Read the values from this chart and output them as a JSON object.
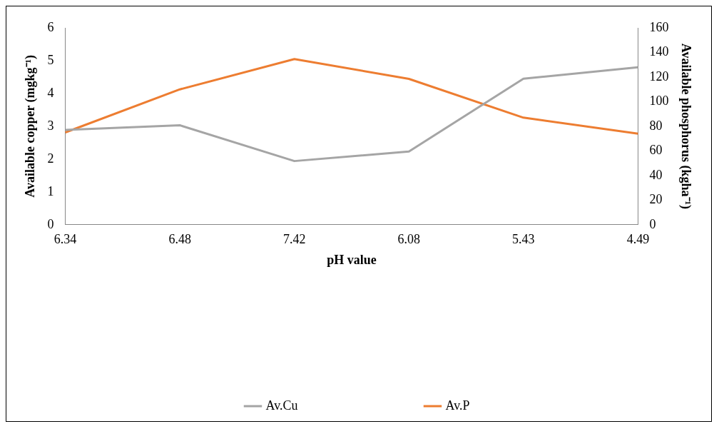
{
  "chart_data": {
    "type": "line",
    "xlabel": "pH value",
    "ylabel": "Available copper (mgkg⁻¹)",
    "y2label": "Available phosphorus (kgha⁻¹)",
    "categories": [
      "6.34",
      "6.48",
      "7.42",
      "6.08",
      "5.43",
      "4.49"
    ],
    "series": [
      {
        "name": "Av.Cu",
        "color": "#a5a5a5",
        "values": [
          2.89,
          3.03,
          1.94,
          2.23,
          4.45,
          4.8
        ]
      },
      {
        "name": "Av.P",
        "color": "#ed7d31",
        "axis": "y2",
        "values": [
          75,
          110,
          134.6,
          118.5,
          87,
          74
        ]
      }
    ],
    "ylim": [
      0,
      6
    ],
    "yticks": [
      0,
      1,
      2,
      3,
      4,
      5,
      6
    ],
    "y2lim": [
      0,
      160
    ],
    "y2ticks": [
      0,
      20,
      40,
      60,
      80,
      100,
      120,
      140,
      160
    ],
    "grid": false,
    "legend": "bottom",
    "marker": "none",
    "line_style": "solid"
  }
}
